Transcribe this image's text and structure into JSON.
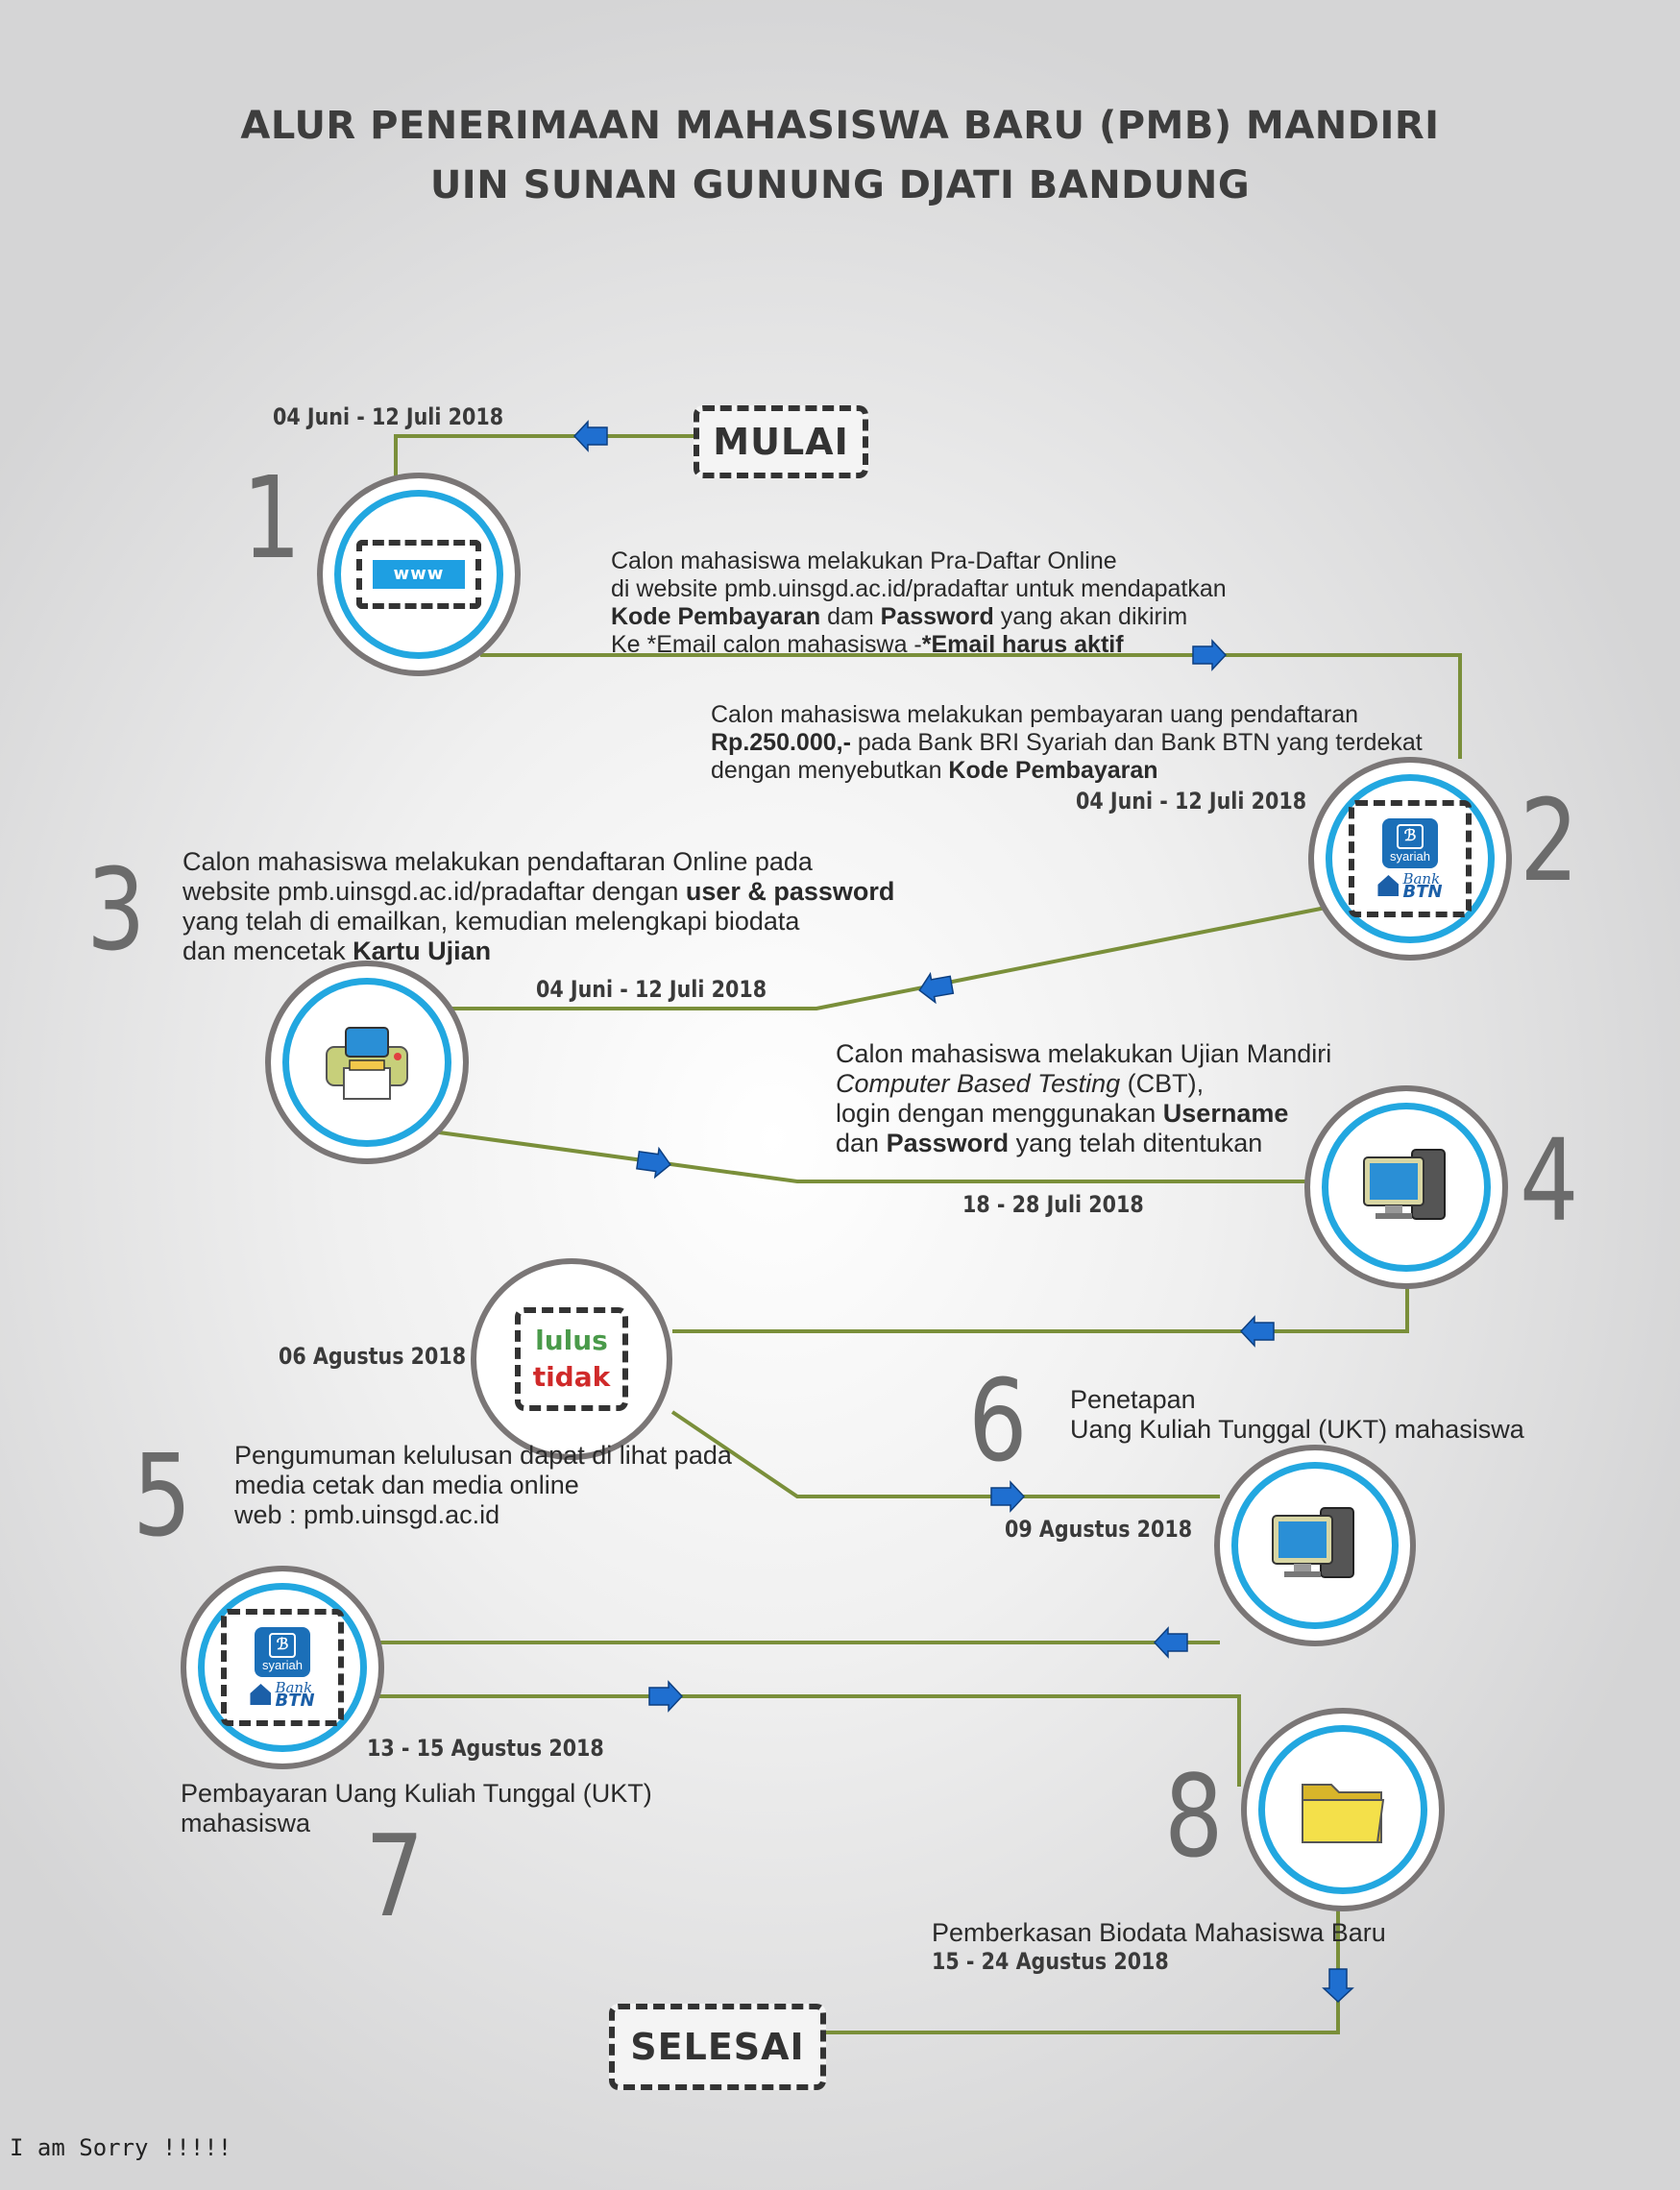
{
  "header": {
    "title_line1": "ALUR PENERIMAAN MAHASISWA BARU (PMB) MANDIRI",
    "title_line2": "UIN SUNAN GUNUNG DJATI BANDUNG"
  },
  "start_label": "MULAI",
  "end_label": "SELESAI",
  "steps": [
    {
      "number": "1",
      "date": "04 Juni - 12 Juli 2018",
      "icon": "www-icon",
      "desc_line1": "Calon mahasiswa melakukan Pra-Daftar Online",
      "desc_line2": "di website pmb.uinsgd.ac.id/pradaftar untuk mendapatkan",
      "desc_line3_b1": "Kode Pembayaran",
      "desc_line3_t1": " dam ",
      "desc_line3_b2": "Password",
      "desc_line3_t2": " yang akan dikirim",
      "desc_line4_t1": "Ke *Email calon mahasiswa -",
      "desc_line4_b1": "*Email harus aktif",
      "icon_text": "www"
    },
    {
      "number": "2",
      "date": "04 Juni - 12 Juli 2018",
      "icon": "bank-icon",
      "desc_line1": "Calon mahasiswa melakukan pembayaran uang pendaftaran",
      "desc_line2_b1": "Rp.250.000,-",
      "desc_line2_t1": " pada Bank BRI Syariah dan Bank BTN yang terdekat",
      "desc_line3_t1": "dengan menyebutkan ",
      "desc_line3_b1": "Kode Pembayaran"
    },
    {
      "number": "3",
      "date": "04 Juni - 12 Juli 2018",
      "icon": "printer-icon",
      "desc_line1": "Calon mahasiswa melakukan pendaftaran Online pada",
      "desc_line2_t1": "website pmb.uinsgd.ac.id/pradaftar dengan ",
      "desc_line2_b1": "user & password",
      "desc_line3": "yang telah di emailkan, kemudian melengkapi biodata",
      "desc_line4_t1": "dan mencetak ",
      "desc_line4_b1": "Kartu Ujian"
    },
    {
      "number": "4",
      "date": "18 - 28 Juli 2018",
      "icon": "computer-icon",
      "desc_line1": "Calon mahasiswa melakukan Ujian Mandiri",
      "desc_line2_i1": "Computer Based Testing",
      "desc_line2_t1": " (CBT),",
      "desc_line3_t1": "login dengan menggunakan ",
      "desc_line3_b1": "Username",
      "desc_line4_t1": "dan ",
      "desc_line4_b1": "Password",
      "desc_line4_t2": " yang telah ditentukan"
    },
    {
      "number": "5",
      "date": "06 Agustus 2018",
      "icon": "result-icon",
      "icon_text_pass": "lulus",
      "icon_text_fail": "tidak",
      "desc_line1": "Pengumuman kelulusan dapat di lihat pada",
      "desc_line2": "media cetak dan media online",
      "desc_line3": "web : pmb.uinsgd.ac.id"
    },
    {
      "number": "6",
      "date": "09 Agustus 2018",
      "icon": "computer-icon",
      "desc_line1": "Penetapan",
      "desc_line2": "Uang Kuliah Tunggal (UKT) mahasiswa"
    },
    {
      "number": "7",
      "date": "13 - 15 Agustus 2018",
      "icon": "bank-icon",
      "desc_line1": "Pembayaran Uang Kuliah Tunggal (UKT)",
      "desc_line2": "mahasiswa"
    },
    {
      "number": "8",
      "date": "15 - 24 Agustus 2018",
      "icon": "folder-icon",
      "desc_line1": "Pemberkasan Biodata Mahasiswa Baru"
    }
  ],
  "bank_labels": {
    "bri": "syariah",
    "btn_top": "Bank",
    "btn_bottom": "BTN"
  },
  "footer_note": "I am Sorry !!!!!",
  "colors": {
    "line": "#7a8f3a",
    "ring_outer": "#7a7676",
    "ring_inner": "#22a7e0",
    "arrow": "#1f6fd0"
  }
}
